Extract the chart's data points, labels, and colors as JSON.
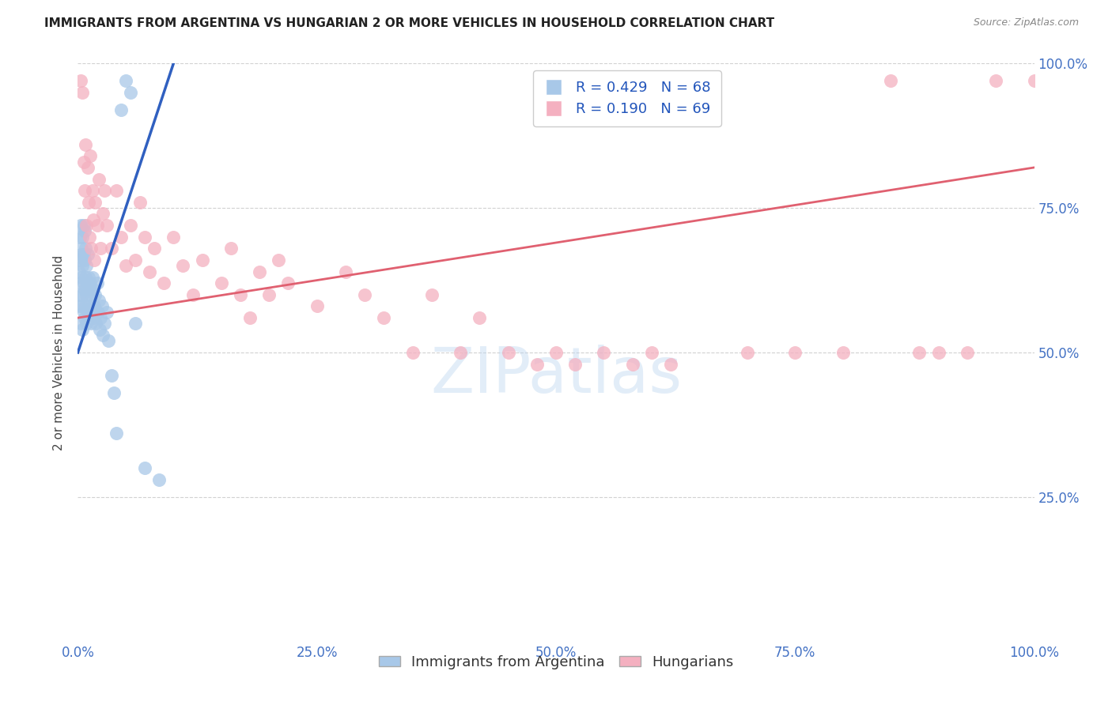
{
  "title": "IMMIGRANTS FROM ARGENTINA VS HUNGARIAN 2 OR MORE VEHICLES IN HOUSEHOLD CORRELATION CHART",
  "source": "Source: ZipAtlas.com",
  "ylabel": "2 or more Vehicles in Household",
  "legend_label1": "Immigrants from Argentina",
  "legend_label2": "Hungarians",
  "legend_R1": "R = 0.429",
  "legend_N1": "N = 68",
  "legend_R2": "R = 0.190",
  "legend_N2": "N = 69",
  "color_blue": "#a8c8e8",
  "color_pink": "#f4b0c0",
  "line_blue": "#3060c0",
  "line_pink": "#e06070",
  "xlim": [
    0.0,
    1.0
  ],
  "ylim": [
    0.0,
    1.0
  ],
  "xticks": [
    0.0,
    0.25,
    0.5,
    0.75,
    1.0
  ],
  "xtick_labels": [
    "0.0%",
    "25.0%",
    "50.0%",
    "75.0%",
    "100.0%"
  ],
  "yticks": [
    0.25,
    0.5,
    0.75,
    1.0
  ],
  "ytick_labels": [
    "25.0%",
    "50.0%",
    "75.0%",
    "100.0%"
  ],
  "tick_color": "#4472c4",
  "watermark": "ZIPatlas",
  "background_color": "#ffffff",
  "grid_color": "#cccccc",
  "argentina_x": [
    0.001,
    0.001,
    0.002,
    0.002,
    0.002,
    0.003,
    0.003,
    0.003,
    0.003,
    0.004,
    0.004,
    0.004,
    0.005,
    0.005,
    0.005,
    0.005,
    0.006,
    0.006,
    0.006,
    0.006,
    0.007,
    0.007,
    0.007,
    0.007,
    0.008,
    0.008,
    0.008,
    0.009,
    0.009,
    0.009,
    0.01,
    0.01,
    0.01,
    0.011,
    0.011,
    0.012,
    0.012,
    0.013,
    0.013,
    0.014,
    0.014,
    0.015,
    0.015,
    0.016,
    0.016,
    0.017,
    0.018,
    0.019,
    0.02,
    0.02,
    0.021,
    0.022,
    0.023,
    0.024,
    0.025,
    0.026,
    0.028,
    0.03,
    0.032,
    0.035,
    0.038,
    0.04,
    0.045,
    0.05,
    0.055,
    0.06,
    0.07,
    0.085
  ],
  "argentina_y": [
    0.58,
    0.64,
    0.6,
    0.66,
    0.7,
    0.55,
    0.62,
    0.67,
    0.72,
    0.58,
    0.63,
    0.68,
    0.54,
    0.6,
    0.65,
    0.7,
    0.57,
    0.62,
    0.67,
    0.72,
    0.56,
    0.61,
    0.66,
    0.71,
    0.58,
    0.63,
    0.68,
    0.55,
    0.6,
    0.65,
    0.57,
    0.62,
    0.67,
    0.58,
    0.63,
    0.56,
    0.61,
    0.57,
    0.62,
    0.55,
    0.6,
    0.58,
    0.63,
    0.56,
    0.61,
    0.58,
    0.6,
    0.55,
    0.57,
    0.62,
    0.57,
    0.59,
    0.54,
    0.56,
    0.58,
    0.53,
    0.55,
    0.57,
    0.52,
    0.46,
    0.43,
    0.36,
    0.92,
    0.97,
    0.95,
    0.55,
    0.3,
    0.28
  ],
  "hungarian_x": [
    0.003,
    0.005,
    0.006,
    0.007,
    0.008,
    0.009,
    0.01,
    0.011,
    0.012,
    0.013,
    0.014,
    0.015,
    0.016,
    0.017,
    0.018,
    0.02,
    0.022,
    0.024,
    0.026,
    0.028,
    0.03,
    0.035,
    0.04,
    0.045,
    0.05,
    0.055,
    0.06,
    0.065,
    0.07,
    0.075,
    0.08,
    0.09,
    0.1,
    0.11,
    0.12,
    0.13,
    0.15,
    0.16,
    0.17,
    0.18,
    0.19,
    0.2,
    0.21,
    0.22,
    0.25,
    0.28,
    0.3,
    0.32,
    0.35,
    0.37,
    0.4,
    0.42,
    0.45,
    0.48,
    0.5,
    0.52,
    0.55,
    0.58,
    0.6,
    0.62,
    0.7,
    0.75,
    0.8,
    0.85,
    0.88,
    0.9,
    0.93,
    0.96,
    1.0
  ],
  "hungarian_y": [
    0.97,
    0.95,
    0.83,
    0.78,
    0.86,
    0.72,
    0.82,
    0.76,
    0.7,
    0.84,
    0.68,
    0.78,
    0.73,
    0.66,
    0.76,
    0.72,
    0.8,
    0.68,
    0.74,
    0.78,
    0.72,
    0.68,
    0.78,
    0.7,
    0.65,
    0.72,
    0.66,
    0.76,
    0.7,
    0.64,
    0.68,
    0.62,
    0.7,
    0.65,
    0.6,
    0.66,
    0.62,
    0.68,
    0.6,
    0.56,
    0.64,
    0.6,
    0.66,
    0.62,
    0.58,
    0.64,
    0.6,
    0.56,
    0.5,
    0.6,
    0.5,
    0.56,
    0.5,
    0.48,
    0.5,
    0.48,
    0.5,
    0.48,
    0.5,
    0.48,
    0.5,
    0.5,
    0.5,
    0.97,
    0.5,
    0.5,
    0.5,
    0.97,
    0.97
  ],
  "blue_line_x0": 0.0,
  "blue_line_x1": 0.1,
  "blue_line_y0": 0.5,
  "blue_line_y1": 1.0,
  "pink_line_x0": 0.0,
  "pink_line_x1": 1.0,
  "pink_line_y0": 0.56,
  "pink_line_y1": 0.82
}
